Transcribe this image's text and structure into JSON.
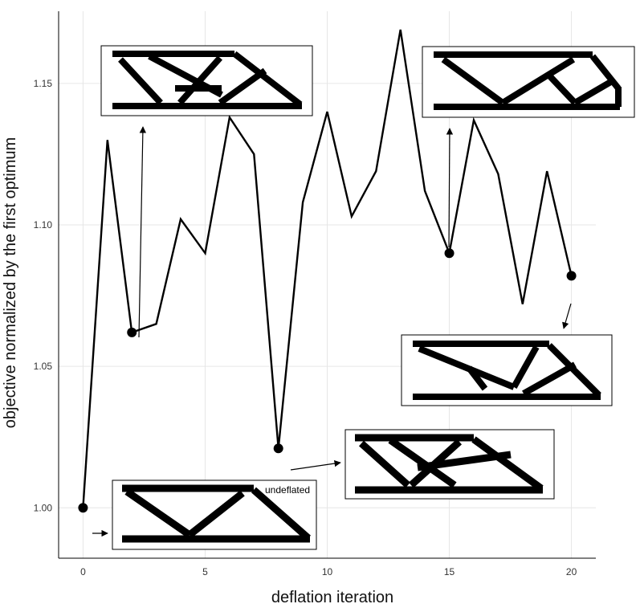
{
  "chart_data": {
    "type": "line",
    "title": "",
    "xlabel": "deflation iteration",
    "ylabel": "objective normalized by the first optimum",
    "xlim": [
      -1.0,
      21.0
    ],
    "ylim": [
      0.9822,
      1.1755
    ],
    "xticks": [
      0,
      5,
      10,
      15,
      20
    ],
    "yticks": [
      1.0,
      1.05,
      1.1,
      1.15
    ],
    "xtick_labels": [
      "0",
      "5",
      "10",
      "15",
      "20"
    ],
    "ytick_labels": [
      "1.00",
      "1.05",
      "1.10",
      "1.15"
    ],
    "grid": true,
    "legend": "none",
    "series": [
      {
        "x": [
          0,
          1,
          2,
          3,
          4,
          5,
          6,
          7,
          8,
          9,
          10,
          11,
          12,
          13,
          14,
          15,
          16,
          17,
          18,
          19,
          20
        ],
        "values": [
          1.0,
          1.13,
          1.062,
          1.065,
          1.102,
          1.09,
          1.138,
          1.125,
          1.021,
          1.108,
          1.14,
          1.103,
          1.119,
          1.169,
          1.112,
          1.09,
          1.137,
          1.118,
          1.072,
          1.119,
          1.082
        ]
      }
    ],
    "highlighted_points": [
      {
        "x": 0,
        "y": 1.0
      },
      {
        "x": 2,
        "y": 1.062
      },
      {
        "x": 8,
        "y": 1.021
      },
      {
        "x": 15,
        "y": 1.09
      },
      {
        "x": 20,
        "y": 1.082
      }
    ],
    "annotations": [
      {
        "text": "undeflated",
        "attached_to_x": 0
      }
    ]
  }
}
